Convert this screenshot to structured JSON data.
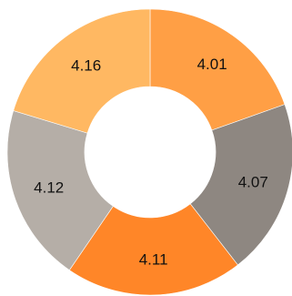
{
  "chart_data": {
    "type": "pie",
    "variant": "donut",
    "title": "",
    "labels": [
      "4.01",
      "4.07",
      "4.11",
      "4.12",
      "4.16"
    ],
    "values": [
      4.01,
      4.07,
      4.11,
      4.12,
      4.16
    ],
    "colors": [
      "#FF9F45",
      "#8E8781",
      "#FF8628",
      "#B5AEA7",
      "#FFB862"
    ],
    "start": "12 o'clock",
    "direction": "clockwise",
    "legend": "none"
  }
}
